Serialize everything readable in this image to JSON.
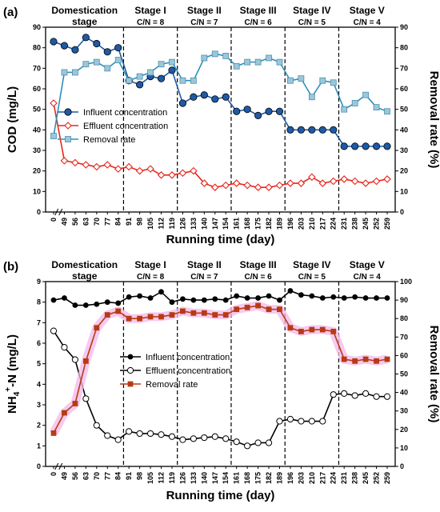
{
  "chart_data": [
    {
      "type": "line",
      "panel_label": "(a)",
      "xlabel": "Running time (day)",
      "ylabel": "COD (mg/L)",
      "y2label": "Removal rate (%)",
      "x": [
        "0",
        "49",
        "56",
        "63",
        "70",
        "77",
        "84",
        "91",
        "98",
        "105",
        "112",
        "119",
        "126",
        "133",
        "140",
        "147",
        "154",
        "161",
        "168",
        "175",
        "182",
        "189",
        "196",
        "203",
        "210",
        "217",
        "224",
        "231",
        "238",
        "245",
        "252",
        "259"
      ],
      "ylim": [
        0,
        90
      ],
      "yticks": [
        0,
        10,
        20,
        30,
        40,
        50,
        60,
        70,
        80,
        90
      ],
      "y2lim": [
        0,
        90
      ],
      "y2ticks": [
        0,
        10,
        20,
        30,
        40,
        50,
        60,
        70,
        80,
        90
      ],
      "stage_boundaries_after_index": [
        6,
        11,
        16,
        21,
        26
      ],
      "stages": [
        {
          "name": "Domestication\nstage",
          "cn": ""
        },
        {
          "name": "Stage I",
          "cn": "C/N = 8"
        },
        {
          "name": "Stage II",
          "cn": "C/N = 7"
        },
        {
          "name": "Stage III",
          "cn": "C/N = 6"
        },
        {
          "name": "Stage IV",
          "cn": "C/N = 5"
        },
        {
          "name": "Stage V",
          "cn": "C/N = 4"
        }
      ],
      "legend_position": "center-left",
      "series": [
        {
          "name": "Influent concentration",
          "axis": "left",
          "color": "#1f5aa6",
          "marker": "circle-filled",
          "values": [
            83,
            81,
            79,
            85,
            82,
            78,
            80,
            64,
            62,
            66,
            65,
            69,
            53,
            56,
            57,
            55,
            56,
            49,
            50,
            47,
            49,
            49,
            40,
            40,
            40,
            40,
            40,
            32,
            32,
            32,
            32,
            32
          ]
        },
        {
          "name": "Effluent concentration",
          "axis": "left",
          "color": "#e8261c",
          "marker": "diamond-open",
          "values": [
            53,
            25,
            24,
            23,
            22,
            23,
            21,
            22,
            20,
            21,
            18,
            18,
            19,
            20,
            14,
            12,
            13,
            14,
            13,
            12,
            12,
            13,
            14,
            14,
            17,
            14,
            15,
            16,
            15,
            14,
            15,
            16
          ]
        },
        {
          "name": "Removal rate",
          "axis": "right",
          "color": "#2e8fb8",
          "marker": "square-filled",
          "values": [
            37,
            68,
            68,
            72,
            73,
            70,
            74,
            64,
            66,
            68,
            72,
            73,
            64,
            64,
            75,
            77,
            76,
            71,
            73,
            73,
            75,
            73,
            64,
            65,
            56,
            64,
            63,
            50,
            53,
            57,
            51,
            49
          ]
        }
      ]
    },
    {
      "type": "line",
      "panel_label": "(b)",
      "xlabel": "Running time (day)",
      "ylabel": "NH4+-N (mg/L)",
      "ylabel_main": "NH",
      "ylabel_sub": "4",
      "ylabel_sup": "+",
      "ylabel_rest": "-N (mg/L)",
      "y2label": "Removal rate (%)",
      "x": [
        "0",
        "49",
        "56",
        "63",
        "70",
        "77",
        "84",
        "91",
        "98",
        "105",
        "112",
        "119",
        "126",
        "133",
        "140",
        "147",
        "154",
        "161",
        "168",
        "175",
        "182",
        "189",
        "196",
        "203",
        "210",
        "217",
        "224",
        "231",
        "238",
        "245",
        "252",
        "259"
      ],
      "ylim": [
        0,
        9
      ],
      "yticks": [
        0,
        1,
        2,
        3,
        4,
        5,
        6,
        7,
        8,
        9
      ],
      "y2lim": [
        0,
        100
      ],
      "y2ticks": [
        0,
        10,
        20,
        30,
        40,
        50,
        60,
        70,
        80,
        90,
        100
      ],
      "stage_boundaries_after_index": [
        6,
        11,
        16,
        21,
        26
      ],
      "stages": [
        {
          "name": "Domestication\nstage",
          "cn": ""
        },
        {
          "name": "Stage I",
          "cn": "C/N = 8"
        },
        {
          "name": "Stage II",
          "cn": "C/N = 7"
        },
        {
          "name": "Stage III",
          "cn": "C/N = 6"
        },
        {
          "name": "Stage IV",
          "cn": "C/N = 5"
        },
        {
          "name": "Stage V",
          "cn": "C/N = 4"
        }
      ],
      "legend_position": "center",
      "series": [
        {
          "name": "Influent concentration",
          "axis": "left",
          "color": "#000000",
          "marker": "circle-filled",
          "values": [
            8.1,
            8.2,
            7.85,
            7.85,
            7.9,
            8.0,
            7.95,
            8.25,
            8.3,
            8.2,
            8.5,
            8.0,
            8.15,
            8.1,
            8.1,
            8.15,
            8.1,
            8.3,
            8.2,
            8.2,
            8.3,
            8.1,
            8.55,
            8.35,
            8.3,
            8.2,
            8.25,
            8.2,
            8.25,
            8.2,
            8.2,
            8.2
          ]
        },
        {
          "name": "Effluent concentration",
          "axis": "left",
          "color": "#000000",
          "marker": "circle-open",
          "values": [
            6.6,
            5.8,
            5.2,
            3.3,
            2.0,
            1.5,
            1.3,
            1.7,
            1.6,
            1.6,
            1.55,
            1.45,
            1.3,
            1.35,
            1.4,
            1.45,
            1.35,
            1.2,
            1.0,
            1.15,
            1.15,
            2.2,
            2.3,
            2.2,
            2.2,
            2.2,
            3.5,
            3.55,
            3.45,
            3.55,
            3.4,
            3.4
          ]
        },
        {
          "name": "Removal rate",
          "axis": "right",
          "color": "#b83a14",
          "marker": "square-filled",
          "values": [
            18,
            29,
            34,
            57,
            75,
            82,
            84,
            80,
            80,
            81,
            81,
            82,
            84,
            83,
            83,
            82,
            82,
            85,
            86,
            87,
            85,
            85,
            75,
            73,
            74,
            74,
            73,
            58,
            57,
            58,
            57,
            58
          ]
        }
      ]
    }
  ]
}
